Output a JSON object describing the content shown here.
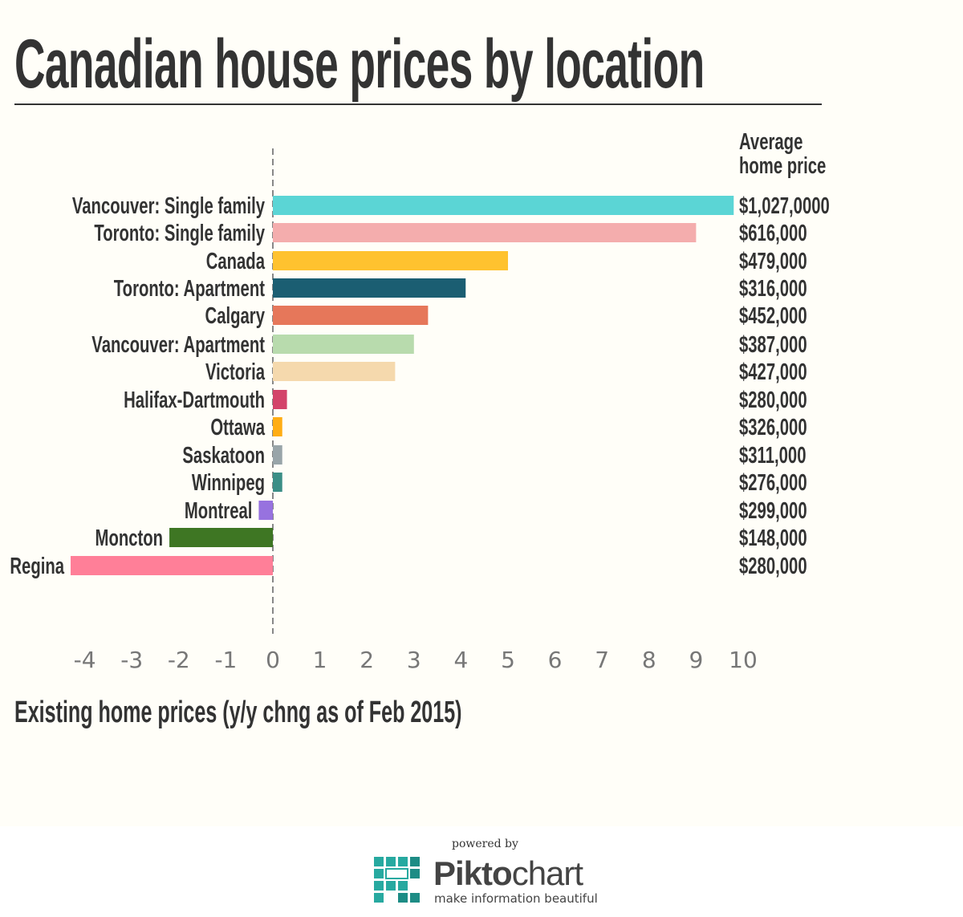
{
  "page": {
    "title": "Canadian house prices by location",
    "price_header": [
      "Average",
      "home price"
    ],
    "xlabel": "Existing home prices (y/y chng as of Feb 2015)"
  },
  "chart_data": {
    "type": "bar",
    "orientation": "horizontal",
    "title": "Canadian house prices by location",
    "xlabel": "Existing home prices (y/y chng as of Feb 2015)",
    "ylabel": "",
    "xlim": [
      -4,
      10
    ],
    "xticks": [
      -4,
      -3,
      -2,
      -1,
      0,
      1,
      2,
      3,
      4,
      5,
      6,
      7,
      8,
      9,
      10
    ],
    "grid": false,
    "legend": "none",
    "categories": [
      "Vancouver: Single family",
      "Toronto: Single family",
      "Canada",
      "Toronto: Apartment",
      "Calgary",
      "Vancouver:  Apartment",
      "Victoria",
      "Halifax-Dartmouth",
      "Ottawa",
      "Saskatoon",
      "Winnipeg",
      "Montreal",
      "Moncton",
      "Regina"
    ],
    "values": [
      9.8,
      9.0,
      5.0,
      4.1,
      3.3,
      3.0,
      2.6,
      0.3,
      0.2,
      0.2,
      0.2,
      -0.3,
      -2.2,
      -4.3
    ],
    "prices": [
      "$1,027,0000",
      "$616,000",
      "$479,000",
      "$316,000",
      "$452,000",
      "$387,000",
      "$427,000",
      "$280,000",
      "$326,000",
      "$311,000",
      "$276,000",
      "$299,000",
      "$148,000",
      "$280,000"
    ],
    "colors": [
      "#5bd5d5",
      "#f4adad",
      "#ffc22f",
      "#1b5e72",
      "#e6775a",
      "#b8dbad",
      "#f5d9ad",
      "#d3436a",
      "#ffad14",
      "#99a5a9",
      "#3b8e86",
      "#9772df",
      "#3e7623",
      "#ff7f98"
    ]
  },
  "footer": {
    "powered_by": "powered by",
    "brand_bold": "Pikto",
    "brand_light": "chart",
    "tagline": "make information beautiful"
  }
}
